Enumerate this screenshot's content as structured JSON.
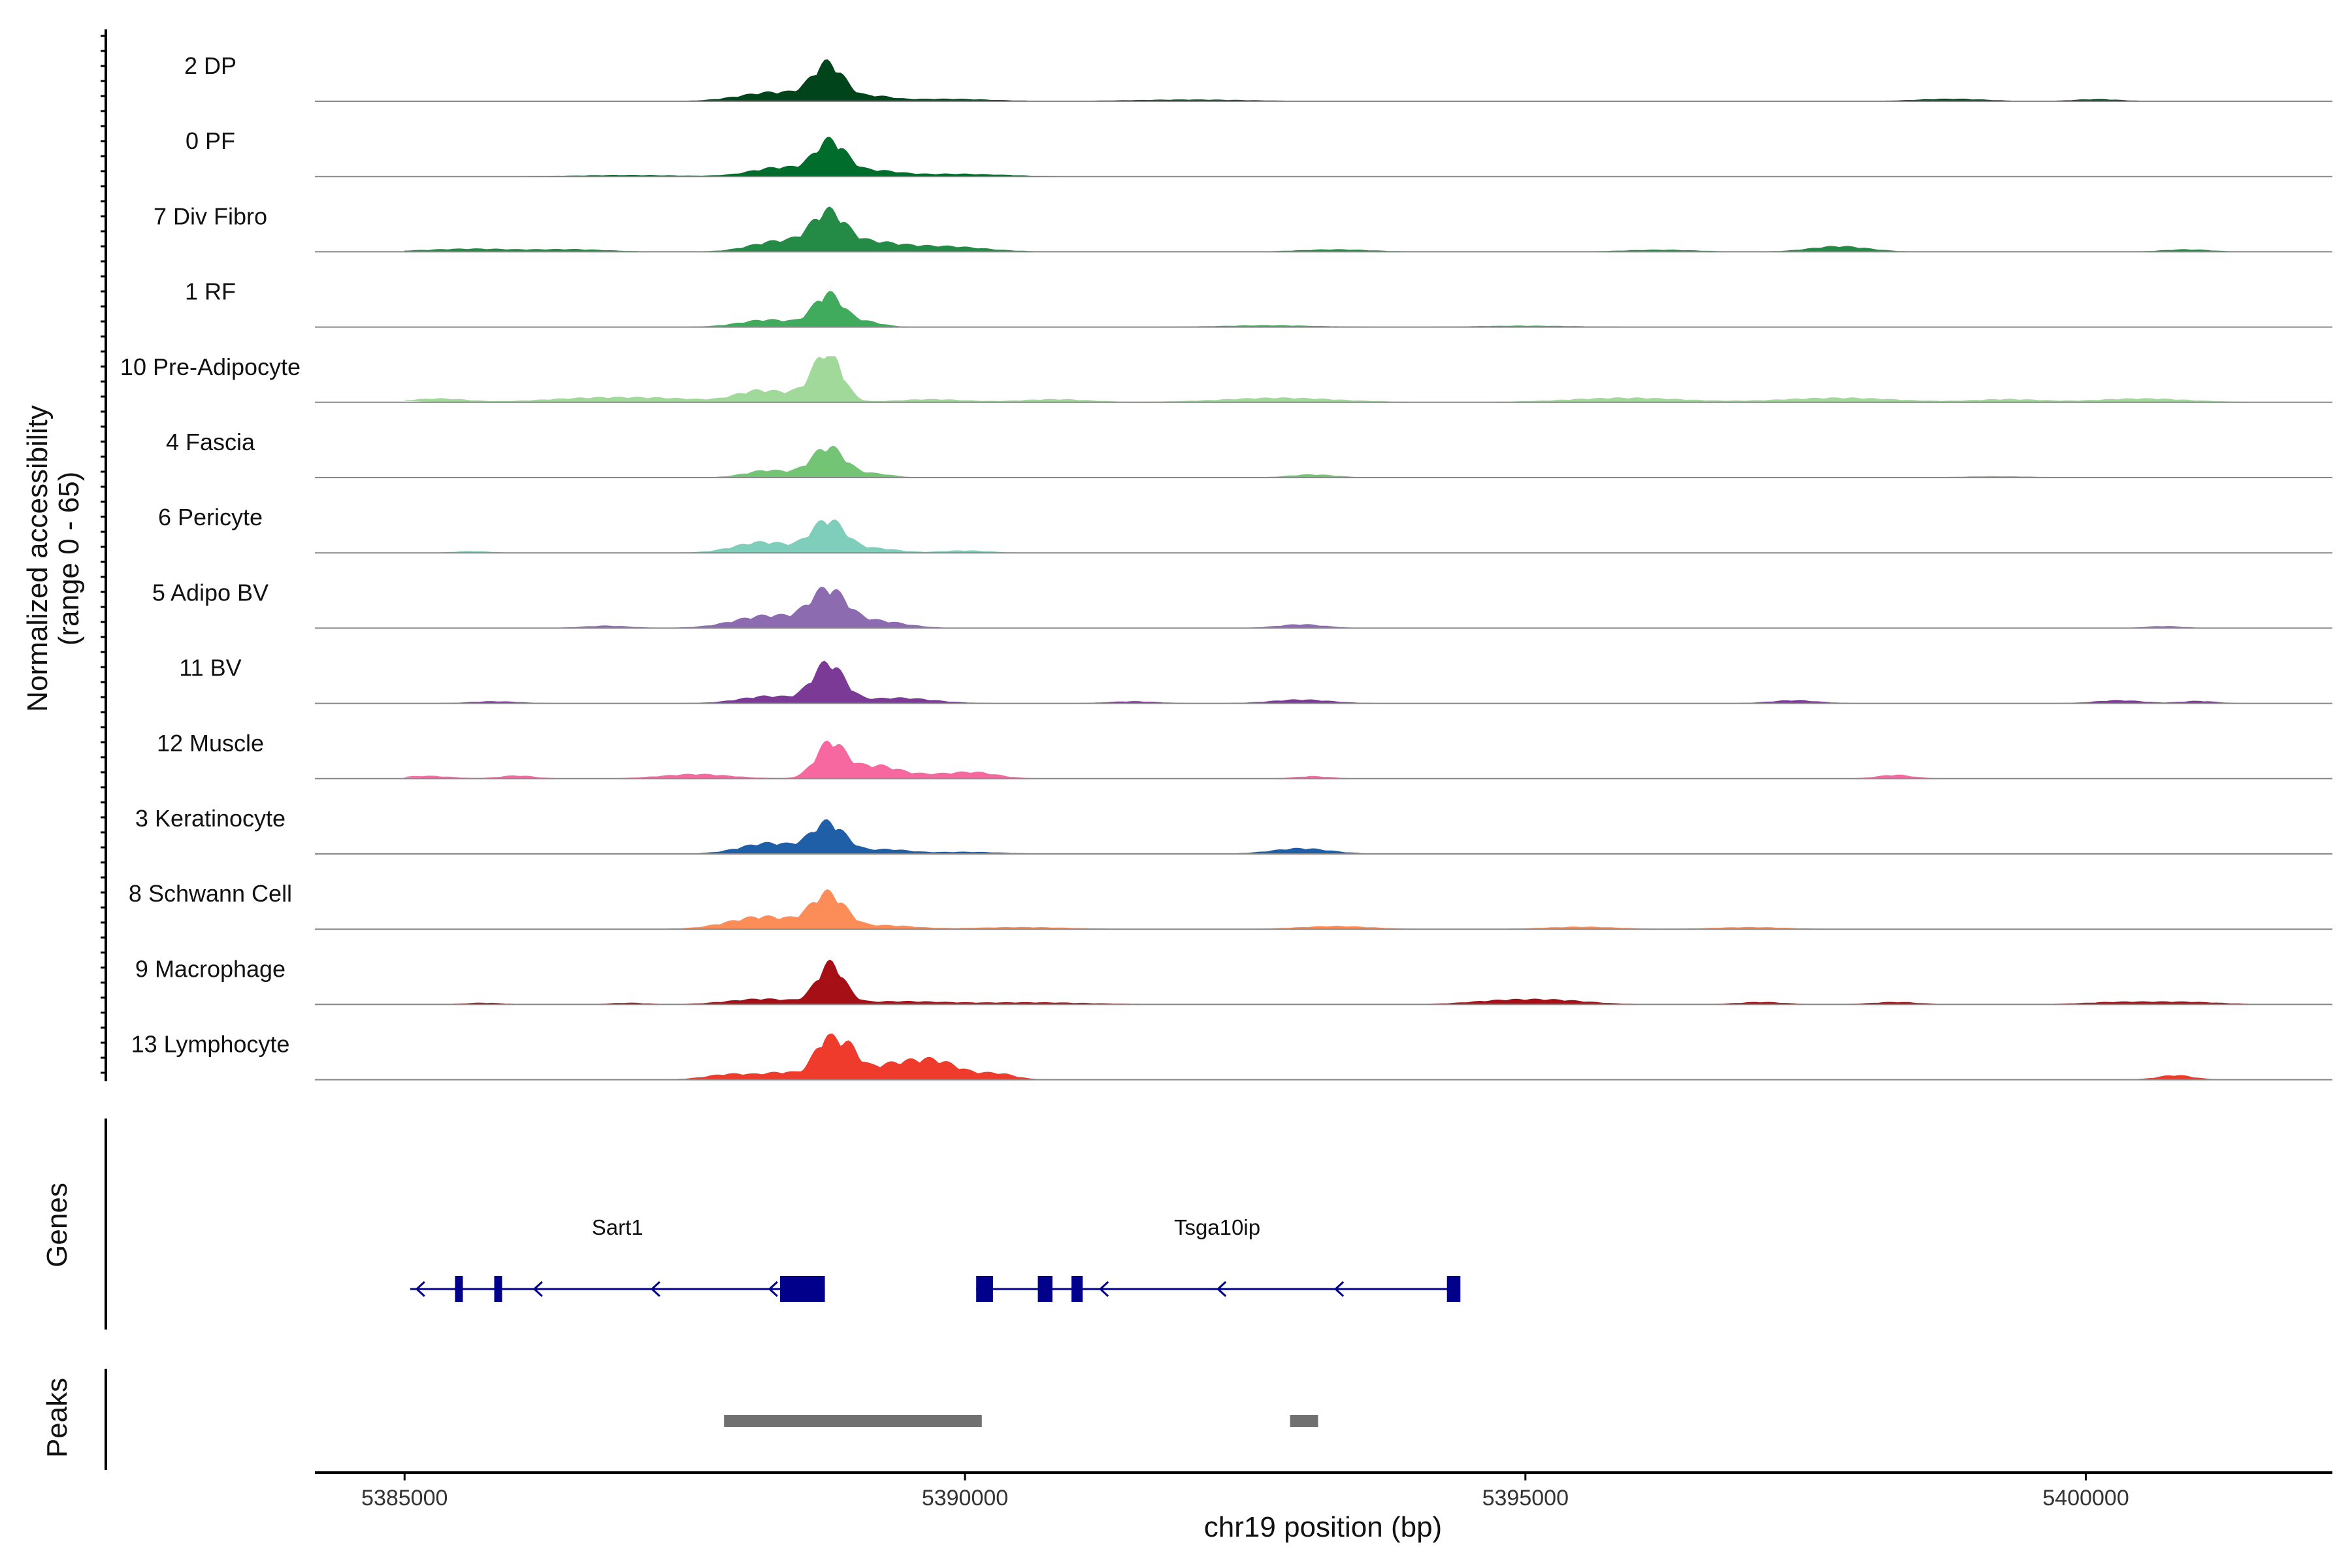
{
  "chart_data": {
    "type": "area",
    "xlabel": "chr19 position (bp)",
    "ylabel_lines": [
      "Normalized accessibility",
      "(range 0 - 65)"
    ],
    "xlim": [
      5384200,
      5402200
    ],
    "x_ticks": [
      5385000,
      5390000,
      5395000,
      5400000
    ],
    "x_tick_labels": [
      "5385000",
      "5390000",
      "5395000",
      "5400000"
    ],
    "y_range": [
      0,
      65
    ],
    "tracks": [
      {
        "name": "2 DP",
        "color": "#00441b",
        "peaks": [
          [
            5388780,
            1.0,
            140
          ],
          [
            5388300,
            0.25,
            300
          ],
          [
            5389200,
            0.12,
            150
          ],
          [
            5389800,
            0.06,
            400
          ],
          [
            5392000,
            0.04,
            500
          ],
          [
            5398800,
            0.06,
            300
          ],
          [
            5400100,
            0.05,
            200
          ]
        ]
      },
      {
        "name": "0 PF",
        "color": "#006d2c",
        "peaks": [
          [
            5388800,
            0.95,
            140
          ],
          [
            5388350,
            0.25,
            250
          ],
          [
            5389200,
            0.15,
            200
          ],
          [
            5389900,
            0.07,
            400
          ],
          [
            5387000,
            0.03,
            500
          ]
        ]
      },
      {
        "name": "7 Div Fibro",
        "color": "#238b45",
        "peaks": [
          [
            5388780,
            1.0,
            150
          ],
          [
            5388350,
            0.3,
            250
          ],
          [
            5389150,
            0.25,
            250
          ],
          [
            5389800,
            0.15,
            350
          ],
          [
            5385600,
            0.08,
            400
          ],
          [
            5386500,
            0.06,
            300
          ],
          [
            5397800,
            0.15,
            250
          ],
          [
            5393300,
            0.06,
            300
          ],
          [
            5396200,
            0.05,
            300
          ],
          [
            5400900,
            0.06,
            200
          ]
        ]
      },
      {
        "name": "1 RF",
        "color": "#41ab5d",
        "peaks": [
          [
            5388780,
            0.9,
            130
          ],
          [
            5388250,
            0.2,
            250
          ],
          [
            5389100,
            0.15,
            150
          ],
          [
            5392700,
            0.04,
            400
          ],
          [
            5395000,
            0.03,
            400
          ]
        ]
      },
      {
        "name": "10 Pre-Adipocyte",
        "color": "#a1d99b",
        "peaks": [
          [
            5388780,
            1.3,
            120
          ],
          [
            5388150,
            0.3,
            200
          ],
          [
            5388600,
            0.25,
            200
          ],
          [
            5385300,
            0.1,
            250
          ],
          [
            5386600,
            0.1,
            400
          ],
          [
            5387300,
            0.1,
            400
          ],
          [
            5392800,
            0.12,
            500
          ],
          [
            5395900,
            0.12,
            500
          ],
          [
            5397800,
            0.12,
            500
          ],
          [
            5399300,
            0.08,
            300
          ],
          [
            5400500,
            0.1,
            400
          ],
          [
            5389700,
            0.08,
            300
          ],
          [
            5390800,
            0.08,
            300
          ]
        ]
      },
      {
        "name": "4 Fascia",
        "color": "#74c476",
        "peaks": [
          [
            5388780,
            0.85,
            150
          ],
          [
            5388250,
            0.2,
            200
          ],
          [
            5389200,
            0.1,
            150
          ],
          [
            5393100,
            0.08,
            200
          ],
          [
            5399200,
            0.03,
            300
          ]
        ]
      },
      {
        "name": "6 Pericyte",
        "color": "#7fcdbb",
        "peaks": [
          [
            5388780,
            0.9,
            150
          ],
          [
            5388200,
            0.3,
            250
          ],
          [
            5389200,
            0.12,
            200
          ],
          [
            5390000,
            0.06,
            200
          ],
          [
            5385600,
            0.04,
            150
          ]
        ]
      },
      {
        "name": "5 Adipo BV",
        "color": "#8c6bb1",
        "peaks": [
          [
            5388780,
            1.0,
            160
          ],
          [
            5388250,
            0.35,
            300
          ],
          [
            5389200,
            0.2,
            250
          ],
          [
            5386800,
            0.06,
            200
          ],
          [
            5393000,
            0.1,
            200
          ],
          [
            5400700,
            0.05,
            150
          ]
        ]
      },
      {
        "name": "11 BV",
        "color": "#7a3a96",
        "peaks": [
          [
            5388780,
            1.1,
            140
          ],
          [
            5388250,
            0.2,
            250
          ],
          [
            5389400,
            0.15,
            300
          ],
          [
            5385800,
            0.05,
            200
          ],
          [
            5393000,
            0.1,
            250
          ],
          [
            5397400,
            0.08,
            200
          ],
          [
            5400300,
            0.08,
            200
          ],
          [
            5401000,
            0.06,
            150
          ],
          [
            5391500,
            0.05,
            200
          ]
        ]
      },
      {
        "name": "12 Muscle",
        "color": "#f768a1",
        "peaks": [
          [
            5388800,
            1.0,
            130
          ],
          [
            5389200,
            0.35,
            200
          ],
          [
            5390100,
            0.15,
            200
          ],
          [
            5387600,
            0.12,
            300
          ],
          [
            5385200,
            0.07,
            200
          ],
          [
            5386000,
            0.08,
            150
          ],
          [
            5393100,
            0.06,
            150
          ],
          [
            5398300,
            0.1,
            150
          ],
          [
            5389700,
            0.1,
            250
          ]
        ]
      },
      {
        "name": "3 Keratinocyte",
        "color": "#1f5fa8",
        "peaks": [
          [
            5388780,
            0.85,
            150
          ],
          [
            5388250,
            0.3,
            250
          ],
          [
            5389300,
            0.12,
            200
          ],
          [
            5393000,
            0.15,
            250
          ],
          [
            5390000,
            0.05,
            300
          ]
        ]
      },
      {
        "name": "8 Schwann Cell",
        "color": "#fc8d59",
        "peaks": [
          [
            5388780,
            0.95,
            150
          ],
          [
            5388200,
            0.35,
            300
          ],
          [
            5389300,
            0.1,
            250
          ],
          [
            5390500,
            0.05,
            400
          ],
          [
            5393300,
            0.08,
            300
          ],
          [
            5395500,
            0.06,
            300
          ],
          [
            5397000,
            0.05,
            300
          ]
        ]
      },
      {
        "name": "9 Macrophage",
        "color": "#a50f15",
        "peaks": [
          [
            5388800,
            1.1,
            120
          ],
          [
            5388200,
            0.15,
            300
          ],
          [
            5389400,
            0.08,
            400
          ],
          [
            5390600,
            0.05,
            500
          ],
          [
            5394800,
            0.1,
            300
          ],
          [
            5395300,
            0.1,
            300
          ],
          [
            5397100,
            0.06,
            200
          ],
          [
            5398300,
            0.06,
            200
          ],
          [
            5400300,
            0.06,
            300
          ],
          [
            5400900,
            0.06,
            300
          ],
          [
            5385700,
            0.04,
            150
          ],
          [
            5387000,
            0.04,
            150
          ]
        ]
      },
      {
        "name": "13 Lymphocyte",
        "color": "#ef3b2c",
        "peaks": [
          [
            5388750,
            1.0,
            100
          ],
          [
            5388950,
            0.8,
            100
          ],
          [
            5389700,
            0.55,
            250
          ],
          [
            5389250,
            0.3,
            200
          ],
          [
            5387900,
            0.15,
            200
          ],
          [
            5388400,
            0.2,
            200
          ],
          [
            5390300,
            0.15,
            150
          ],
          [
            5400800,
            0.12,
            150
          ]
        ]
      }
    ],
    "genes_panel_label": "Genes",
    "genes": [
      {
        "name": "Sart1",
        "strand": "-",
        "start": 5385050,
        "end": 5388750,
        "exons": [
          [
            5385450,
            5385520
          ],
          [
            5385800,
            5385870
          ],
          [
            5388350,
            5388750
          ]
        ]
      },
      {
        "name": "Tsga10ip",
        "strand": "-",
        "start": 5390100,
        "end": 5394400,
        "exons": [
          [
            5390100,
            5390250
          ],
          [
            5390650,
            5390780
          ],
          [
            5390950,
            5391050
          ],
          [
            5394300,
            5394420
          ]
        ]
      }
    ],
    "peaks_panel_label": "Peaks",
    "peak_regions": [
      [
        5387850,
        5390150
      ],
      [
        5392900,
        5393150
      ]
    ]
  },
  "colors": {
    "gene": "#00008b",
    "peak": "#707070",
    "baseline": "#888888",
    "axis": "#000000"
  }
}
